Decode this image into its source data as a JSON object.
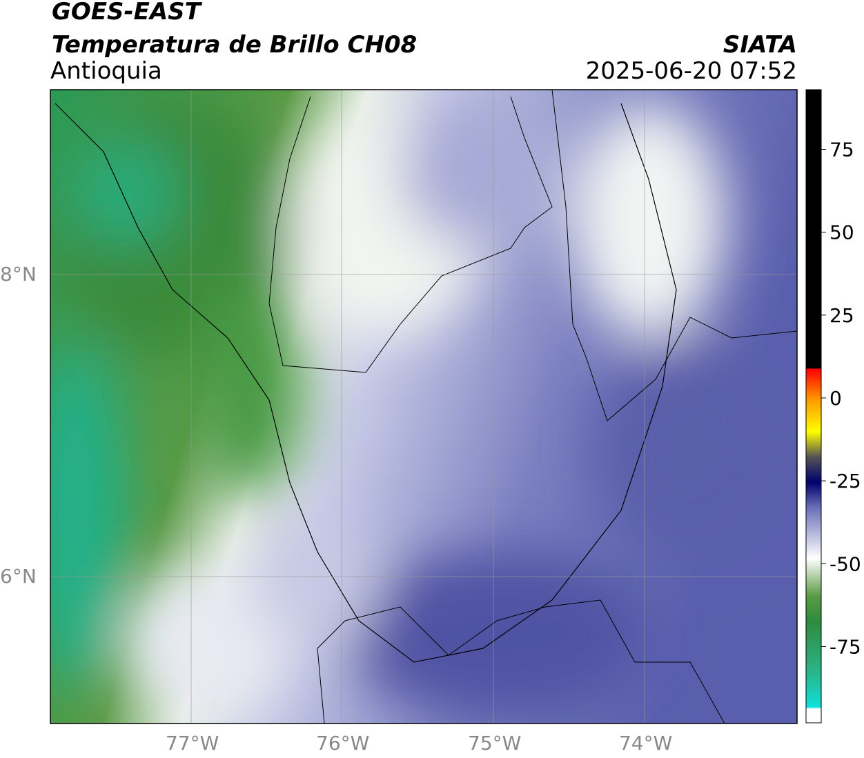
{
  "header": {
    "title": "GOES-EAST",
    "subtitle": "Temperatura de Brillo CH08",
    "region": "Antioquia",
    "source": "SIATA",
    "datetime": "2025-06-20 07:52"
  },
  "map": {
    "lon_labels": [
      "77°W",
      "76°W",
      "75°W",
      "74°W"
    ],
    "lat_labels": [
      "8°N",
      "6°N"
    ]
  },
  "colorbar": {
    "lim": [
      -98,
      93
    ],
    "ticks": [
      75,
      50,
      25,
      0,
      -25,
      -50,
      -75
    ]
  }
}
